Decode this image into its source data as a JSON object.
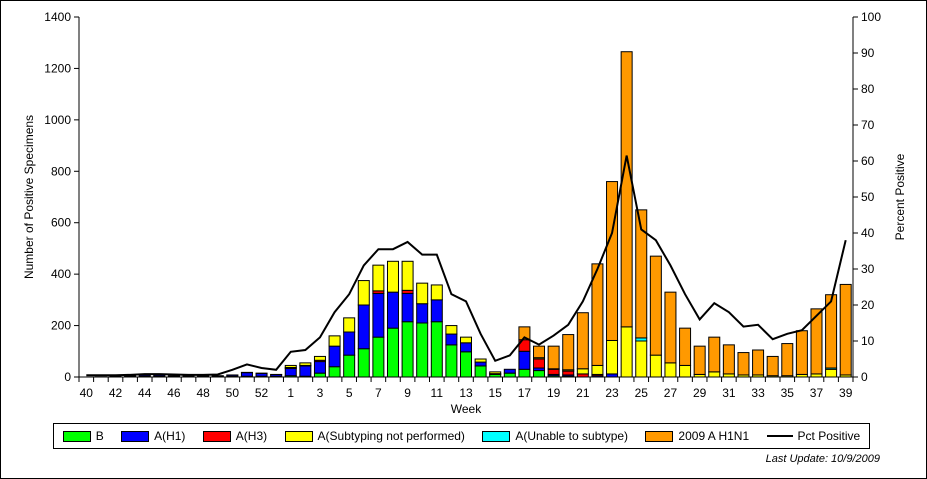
{
  "chart_data": {
    "type": "bar",
    "stacked": true,
    "xlabel": "Week",
    "ylabel": "Number of Positive Specimens",
    "y2label": "Percent Positive",
    "ylim": [
      0,
      1400
    ],
    "y2lim": [
      0,
      100
    ],
    "yticks": [
      0,
      200,
      400,
      600,
      800,
      1000,
      1200,
      1400
    ],
    "y2ticks": [
      0,
      10,
      20,
      30,
      40,
      50,
      60,
      70,
      80,
      90,
      100
    ],
    "categories": [
      "40",
      "41",
      "42",
      "43",
      "44",
      "45",
      "46",
      "47",
      "48",
      "49",
      "50",
      "51",
      "52",
      "53",
      "1",
      "2",
      "3",
      "4",
      "5",
      "6",
      "7",
      "8",
      "9",
      "10",
      "11",
      "12",
      "13",
      "14",
      "15",
      "16",
      "17",
      "18",
      "19",
      "20",
      "21",
      "22",
      "23",
      "24",
      "25",
      "26",
      "27",
      "28",
      "29",
      "30",
      "31",
      "32",
      "33",
      "34",
      "35",
      "36",
      "37",
      "38",
      "39"
    ],
    "xtick_labels": [
      "40",
      "42",
      "44",
      "46",
      "48",
      "50",
      "52",
      "1",
      "3",
      "5",
      "7",
      "9",
      "11",
      "13",
      "15",
      "17",
      "19",
      "21",
      "23",
      "25",
      "27",
      "29",
      "31",
      "33",
      "35",
      "37",
      "39"
    ],
    "series": [
      {
        "name": "B",
        "color": "#00ff00",
        "values": [
          0,
          0,
          0,
          1,
          2,
          2,
          1,
          1,
          1,
          1,
          2,
          3,
          3,
          2,
          5,
          3,
          15,
          40,
          85,
          110,
          155,
          190,
          215,
          210,
          215,
          125,
          98,
          43,
          10,
          15,
          30,
          25,
          5,
          3,
          0,
          0,
          0,
          0,
          0,
          0,
          0,
          0,
          0,
          0,
          0,
          0,
          0,
          0,
          0,
          0,
          0,
          0,
          0
        ]
      },
      {
        "name": "A(H1)",
        "color": "#0000ff",
        "values": [
          0,
          1,
          2,
          3,
          5,
          5,
          3,
          2,
          2,
          3,
          5,
          14,
          11,
          7,
          28,
          40,
          45,
          80,
          90,
          170,
          170,
          140,
          110,
          75,
          85,
          42,
          35,
          15,
          3,
          15,
          70,
          10,
          5,
          5,
          0,
          5,
          12,
          0,
          0,
          0,
          0,
          0,
          0,
          0,
          0,
          0,
          0,
          0,
          0,
          0,
          0,
          0,
          0
        ]
      },
      {
        "name": "A(H3)",
        "color": "#ff0000",
        "values": [
          0,
          0,
          0,
          0,
          1,
          1,
          0,
          0,
          0,
          0,
          0,
          1,
          0,
          0,
          4,
          2,
          5,
          0,
          0,
          0,
          10,
          0,
          12,
          0,
          0,
          0,
          0,
          0,
          0,
          0,
          45,
          35,
          20,
          15,
          12,
          5,
          0,
          0,
          0,
          0,
          0,
          0,
          0,
          0,
          0,
          0,
          0,
          0,
          0,
          0,
          0,
          0,
          0
        ]
      },
      {
        "name": "A(Subtyping not performed)",
        "color": "#ffff00",
        "values": [
          0,
          0,
          0,
          0,
          0,
          0,
          1,
          1,
          1,
          1,
          1,
          0,
          1,
          1,
          8,
          10,
          15,
          40,
          55,
          95,
          100,
          120,
          113,
          80,
          58,
          33,
          22,
          12,
          7,
          0,
          0,
          5,
          2,
          5,
          20,
          35,
          130,
          195,
          140,
          85,
          55,
          45,
          10,
          20,
          12,
          8,
          8,
          5,
          5,
          10,
          12,
          30,
          8
        ]
      },
      {
        "name": "A(Unable to subtype)",
        "color": "#00ffff",
        "values": [
          0,
          0,
          0,
          0,
          0,
          0,
          0,
          0,
          0,
          0,
          0,
          0,
          0,
          0,
          0,
          0,
          0,
          0,
          0,
          0,
          0,
          0,
          0,
          0,
          0,
          0,
          0,
          0,
          0,
          0,
          0,
          0,
          0,
          0,
          0,
          0,
          0,
          0,
          12,
          0,
          0,
          0,
          0,
          0,
          0,
          0,
          0,
          0,
          0,
          0,
          0,
          5,
          0
        ]
      },
      {
        "name": "2009 A H1N1",
        "color": "#ff9900",
        "values": [
          0,
          0,
          0,
          0,
          0,
          0,
          0,
          0,
          0,
          0,
          0,
          0,
          0,
          0,
          0,
          0,
          0,
          0,
          0,
          0,
          0,
          0,
          0,
          0,
          0,
          0,
          0,
          0,
          0,
          0,
          50,
          45,
          88,
          137,
          218,
          395,
          618,
          1070,
          498,
          385,
          275,
          145,
          110,
          135,
          113,
          87,
          97,
          75,
          125,
          170,
          253,
          285,
          352
        ]
      }
    ],
    "line": {
      "name": "Pct Positive",
      "axis": "right",
      "color": "#000000",
      "values": [
        0.5,
        0.5,
        0.5,
        0.6,
        0.8,
        0.8,
        0.7,
        0.6,
        0.6,
        0.7,
        2,
        3.5,
        2.5,
        2,
        7,
        7.5,
        11,
        18,
        23,
        31,
        35.5,
        35.5,
        37.5,
        34,
        34,
        23,
        21,
        12,
        4.5,
        6,
        11,
        9,
        11.5,
        14.5,
        21,
        30,
        40,
        61.5,
        41,
        38,
        31,
        23,
        16,
        20.5,
        18,
        14,
        14.5,
        10.5,
        12,
        13,
        17,
        21,
        38
      ]
    }
  },
  "footer": {
    "last_update": "Last Update: 10/9/2009"
  }
}
